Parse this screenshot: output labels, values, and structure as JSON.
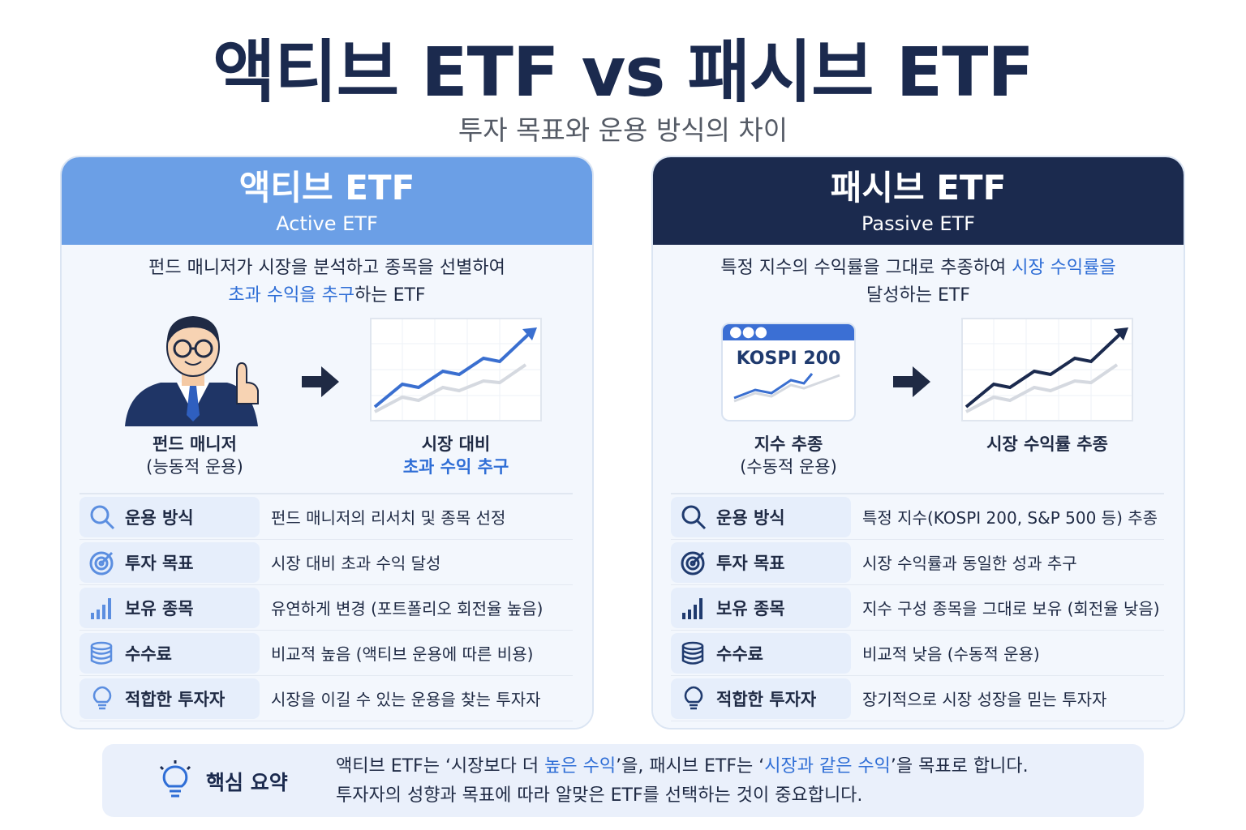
{
  "title": "액티브 ETF vs 패시브 ETF",
  "subtitle": "투자 목표와 운용 방식의 차이",
  "active": {
    "title": "액티브 ETF",
    "subtitle": "Active ETF",
    "desc_line1": "펀드 매니저가 시장을 분석하고 종목을 선별하여",
    "desc_line2_highlight": "초과 수익을 추구",
    "desc_line2_rest": "하는 ETF",
    "left_caption_1": "펀드 매니저",
    "left_caption_2": "(능동적 운용)",
    "right_caption_1": "시장 대비",
    "right_caption_2": "초과 수익 추구",
    "rows": [
      {
        "icon": "search-icon",
        "label": "운용 방식",
        "value": "펀드 매니저의 리서치 및 종목 선정"
      },
      {
        "icon": "target-icon",
        "label": "투자 목표",
        "value": "시장 대비 초과 수익 달성"
      },
      {
        "icon": "bar-chart-icon",
        "label": "보유 종목",
        "value": "유연하게 변경 (포트폴리오 회전율 높음)"
      },
      {
        "icon": "coins-icon",
        "label": "수수료",
        "value": "비교적 높음 (액티브 운용에 따른 비용)"
      },
      {
        "icon": "lightbulb-icon",
        "label": "적합한 투자자",
        "value": "시장을 이길 수 있는 운용을 찾는 투자자"
      }
    ]
  },
  "passive": {
    "title": "패시브 ETF",
    "subtitle": "Passive ETF",
    "desc_line1_rest": "특정 지수의 수익률을 그대로 추종하여 ",
    "desc_line1_highlight": "시장 수익률을",
    "desc_line2": "달성하는 ETF",
    "index_label": "KOSPI 200",
    "left_caption_1": "지수 추종",
    "left_caption_2": "(수동적 운용)",
    "right_caption_1": "시장 수익률 추종",
    "rows": [
      {
        "icon": "search-icon",
        "label": "운용 방식",
        "value": "특정 지수(KOSPI 200, S&P 500 등) 추종"
      },
      {
        "icon": "target-icon",
        "label": "투자 목표",
        "value": "시장 수익률과 동일한 성과 추구"
      },
      {
        "icon": "bar-chart-icon",
        "label": "보유 종목",
        "value": "지수 구성 종목을 그대로 보유 (회전율 낮음)"
      },
      {
        "icon": "coins-icon",
        "label": "수수료",
        "value": "비교적 낮음 (수동적 운용)"
      },
      {
        "icon": "lightbulb-icon",
        "label": "적합한 투자자",
        "value": "장기적으로 시장 성장을 믿는 투자자"
      }
    ]
  },
  "summary": {
    "title": "핵심 요약",
    "line1_a": "액티브 ETF는 ‘시장보다 더 ",
    "line1_b": "높은 수익",
    "line1_c": "’을, 패시브 ETF는 ‘",
    "line1_d": "시장과 같은 수익",
    "line1_e": "’을 목표로 합니다.",
    "line2": "투자자의 성향과 목표에 따라 알맞은 ETF를 선택하는 것이 중요합니다."
  },
  "colors": {
    "active_accent": "#6b9fe6",
    "passive_accent": "#1b2a4e",
    "highlight": "#2f6ed6"
  }
}
